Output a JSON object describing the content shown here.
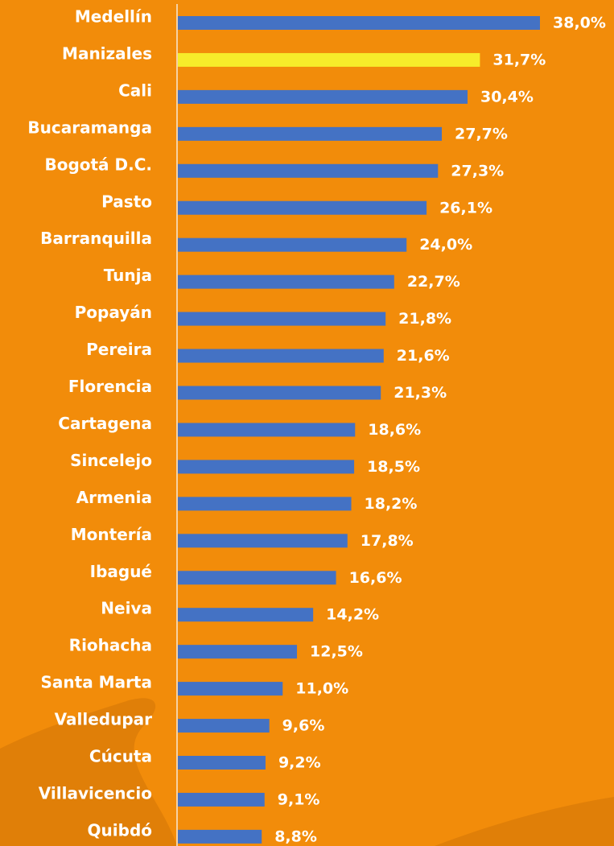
{
  "chart_data": {
    "type": "bar",
    "orientation": "horizontal",
    "categories": [
      "Medellín",
      "Manizales",
      "Cali",
      "Bucaramanga",
      "Bogotá D.C.",
      "Pasto",
      "Barranquilla",
      "Tunja",
      "Popayán",
      "Pereira",
      "Florencia",
      "Cartagena",
      "Sincelejo",
      "Armenia",
      "Montería",
      "Ibagué",
      "Neiva",
      "Riohacha",
      "Santa Marta",
      "Valledupar",
      "Cúcuta",
      "Villavicencio",
      "Quibdó"
    ],
    "values": [
      38.0,
      31.7,
      30.4,
      27.7,
      27.3,
      26.1,
      24.0,
      22.7,
      21.8,
      21.6,
      21.3,
      18.6,
      18.5,
      18.2,
      17.8,
      16.6,
      14.2,
      12.5,
      11.0,
      9.6,
      9.2,
      9.1,
      8.8
    ],
    "value_labels": [
      "38,0%",
      "31,7%",
      "30,4%",
      "27,7%",
      "27,3%",
      "26,1%",
      "24,0%",
      "22,7%",
      "21,8%",
      "21,6%",
      "21,3%",
      "18,6%",
      "18,5%",
      "18,2%",
      "17,8%",
      "16,6%",
      "14,2%",
      "12,5%",
      "11,0%",
      "9,6%",
      "9,2%",
      "9,1%",
      "8,8%"
    ],
    "colors": [
      "#4472c4",
      "#f7ec2a",
      "#4472c4",
      "#4472c4",
      "#4472c4",
      "#4472c4",
      "#4472c4",
      "#4472c4",
      "#4472c4",
      "#4472c4",
      "#4472c4",
      "#4472c4",
      "#4472c4",
      "#4472c4",
      "#4472c4",
      "#4472c4",
      "#4472c4",
      "#4472c4",
      "#4472c4",
      "#4472c4",
      "#4472c4",
      "#4472c4",
      "#4472c4"
    ]
  }
}
